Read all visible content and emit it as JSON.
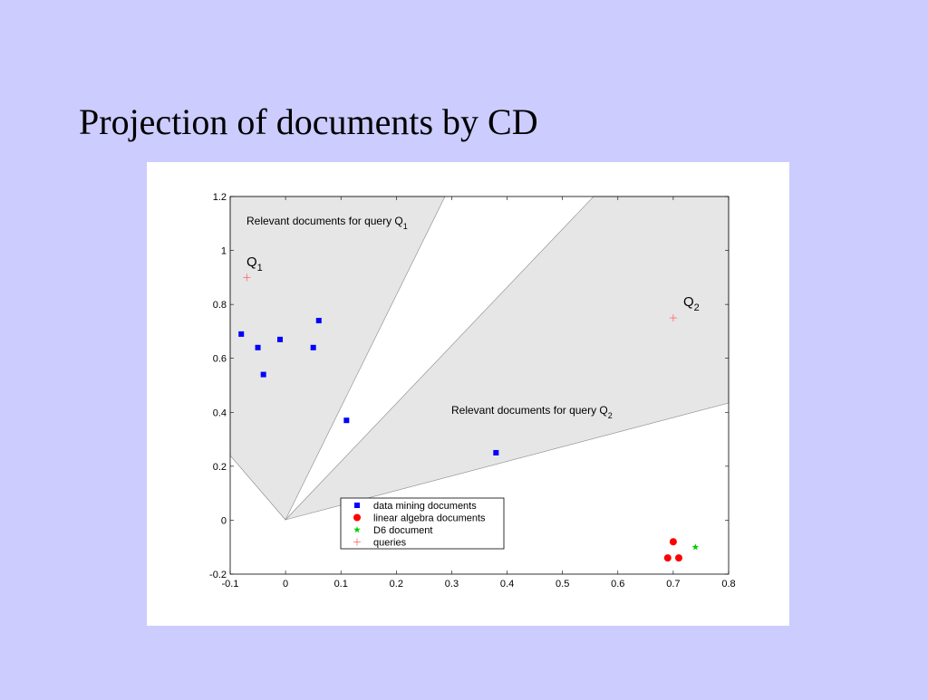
{
  "slide_title": "Projection of documents by CD",
  "chart_data": {
    "type": "scatter",
    "xlim": [
      -0.1,
      0.8
    ],
    "ylim": [
      -0.2,
      1.2
    ],
    "xticks": [
      -0.1,
      0,
      0.1,
      0.2,
      0.3,
      0.4,
      0.5,
      0.6,
      0.7,
      0.8
    ],
    "yticks": [
      -0.2,
      0,
      0.2,
      0.4,
      0.6,
      0.8,
      1,
      1.2
    ],
    "grid": false,
    "legend": "bottom-center",
    "annotations": [
      {
        "text": "Relevant documents for query Q",
        "subscript": "1"
      },
      {
        "text": "Q",
        "subscript": "1"
      },
      {
        "text": "Q",
        "subscript": "2"
      },
      {
        "text": "Relevant documents for query Q",
        "subscript": "2"
      }
    ],
    "series": [
      {
        "name": "data mining documents",
        "color": "#0000ff",
        "marker": "square",
        "x": [
          -0.08,
          -0.05,
          -0.04,
          -0.01,
          0.06,
          0.05,
          0.11,
          0.38
        ],
        "values": [
          0.69,
          0.64,
          0.54,
          0.67,
          0.74,
          0.64,
          0.37,
          0.25
        ]
      },
      {
        "name": "linear algebra documents",
        "color": "#ff0000",
        "marker": "circle",
        "x": [
          0.7,
          0.69,
          0.71
        ],
        "values": [
          -0.08,
          -0.14,
          -0.14
        ]
      },
      {
        "name": "D6 document",
        "color": "#00cc00",
        "marker": "star",
        "x": [
          0.74
        ],
        "values": [
          -0.1
        ]
      },
      {
        "name": "queries",
        "color": "#ff6666",
        "marker": "plus",
        "x": [
          -0.07,
          0.7
        ],
        "values": [
          0.9,
          0.75
        ]
      }
    ]
  }
}
